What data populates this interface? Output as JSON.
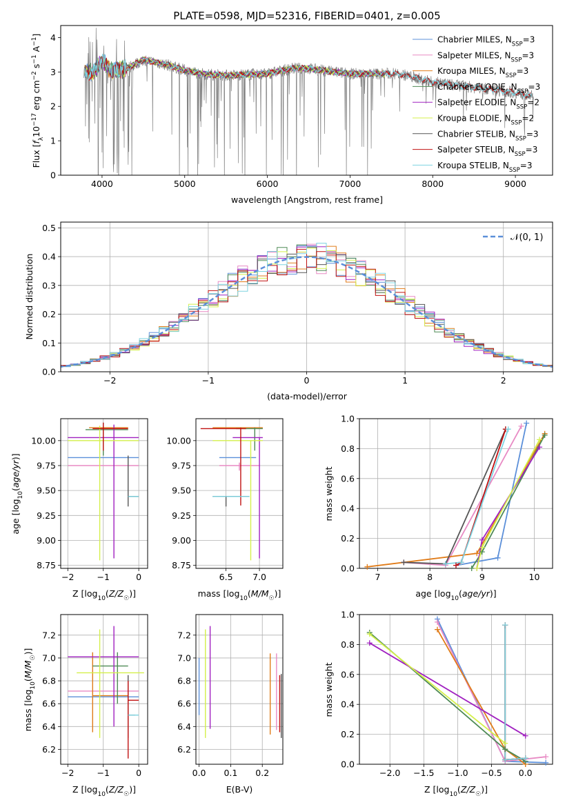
{
  "figure": {
    "title": "PLATE=0598, MJD=52316, FIBERID=0401, z=0.005"
  },
  "colors": {
    "Chabrier MILES": "#5b8fd9",
    "Salpeter MILES": "#e88ac4",
    "Kroupa MILES": "#e07b18",
    "Chabrier ELODIE": "#4e8a55",
    "Salpeter ELODIE": "#a020c0",
    "Kroupa ELODIE": "#d4f04a",
    "Chabrier STELIB": "#555555",
    "Salpeter STELIB": "#c01010",
    "Kroupa STELIB": "#7dd3e0",
    "data": "#808080",
    "gaussian": "#5b8fd9"
  },
  "chart_data": [
    {
      "id": "spectrum",
      "type": "line",
      "title": "PLATE=0598, MJD=52316, FIBERID=0401, z=0.005",
      "xlabel": "wavelength [Angstrom, rest frame]",
      "ylabel_parts": [
        "Flux [",
        "f",
        "λ",
        "10",
        "−17",
        " erg cm",
        "−2",
        " s",
        "−1",
        " A",
        "−1",
        "]"
      ],
      "xlim": [
        3500,
        9450
      ],
      "ylim": [
        0,
        4.35
      ],
      "xticks": [
        4000,
        5000,
        6000,
        7000,
        8000,
        9000
      ],
      "yticks": [
        0,
        1,
        2,
        3,
        4
      ],
      "legend_position": "top-right",
      "series": [
        {
          "name": "Chabrier MILES",
          "nssp": "3"
        },
        {
          "name": "Salpeter MILES",
          "nssp": "3"
        },
        {
          "name": "Kroupa MILES",
          "nssp": "3"
        },
        {
          "name": "Chabrier ELODIE",
          "nssp": "3"
        },
        {
          "name": "Salpeter ELODIE",
          "nssp": "2"
        },
        {
          "name": "Kroupa ELODIE",
          "nssp": "2"
        },
        {
          "name": "Chabrier STELIB",
          "nssp": "3"
        },
        {
          "name": "Salpeter STELIB",
          "nssp": "3"
        },
        {
          "name": "Kroupa STELIB",
          "nssp": "3"
        }
      ],
      "continuum": {
        "x": [
          3780,
          3900,
          4000,
          4100,
          4300,
          4500,
          4800,
          5000,
          5200,
          5500,
          6000,
          6300,
          6500,
          6800,
          7000,
          7400,
          7600,
          8000,
          8500,
          9000,
          9200
        ],
        "y": [
          3.0,
          3.0,
          3.35,
          3.05,
          3.1,
          3.35,
          3.2,
          3.05,
          2.95,
          2.9,
          2.95,
          3.1,
          3.1,
          3.0,
          2.95,
          2.95,
          2.95,
          2.7,
          2.55,
          2.4,
          2.3
        ]
      }
    },
    {
      "id": "residuals",
      "type": "line",
      "xlabel": "(data-model)/error",
      "ylabel": "Normed distribution",
      "xlim": [
        -2.5,
        2.5
      ],
      "ylim": [
        0,
        0.52
      ],
      "xticks": [
        -2,
        -1,
        0,
        1,
        2
      ],
      "yticks": [
        0.0,
        0.1,
        0.2,
        0.3,
        0.4,
        0.5
      ],
      "grid": true,
      "legend_position": "top-right",
      "legend_label": "𝒩(0, 1)",
      "gaussian": {
        "mu": 0,
        "sigma": 1
      }
    },
    {
      "id": "age-vs-Z",
      "type": "scatter",
      "xlabel_parts": [
        "Z [log",
        "10",
        "(",
        "Z/Z",
        "☉",
        ")]"
      ],
      "ylabel_parts": [
        "age  [log",
        "10",
        "(",
        "age/yr",
        ")]"
      ],
      "xlim": [
        -2.2,
        0.25
      ],
      "ylim": [
        8.72,
        10.22
      ],
      "xticks": [
        -2,
        -1,
        0
      ],
      "yticks": [
        8.75,
        9.0,
        9.25,
        9.5,
        9.75,
        10.0
      ],
      "grid": true,
      "points": [
        {
          "s": "Chabrier MILES",
          "x": -2.0,
          "y": 9.83,
          "xe": [
            -2.0,
            0.0
          ],
          "ye": [
            9.83,
            9.83
          ]
        },
        {
          "s": "Salpeter MILES",
          "x": -2.0,
          "y": 9.75,
          "xe": [
            -2.0,
            0.0
          ],
          "ye": [
            9.75,
            9.75
          ]
        },
        {
          "s": "Kroupa MILES",
          "x": -1.4,
          "y": 10.13,
          "xe": [
            -1.4,
            -0.3
          ],
          "ye": [
            10.13,
            10.13
          ]
        },
        {
          "s": "Chabrier ELODIE",
          "x": -1.0,
          "y": 10.11,
          "xe": [
            -1.5,
            -0.3
          ],
          "ye": [
            9.85,
            10.18
          ]
        },
        {
          "s": "Salpeter ELODIE",
          "x": -0.7,
          "y": 10.03,
          "xe": [
            -2.0,
            0.0
          ],
          "ye": [
            8.82,
            10.16
          ]
        },
        {
          "s": "Kroupa ELODIE",
          "x": -1.1,
          "y": 10.0,
          "xe": [
            -2.0,
            0.0
          ],
          "ye": [
            8.8,
            10.15
          ]
        },
        {
          "s": "Chabrier STELIB",
          "x": -0.3,
          "y": 9.44,
          "xe": [
            -0.3,
            0.0
          ],
          "ye": [
            9.34,
            9.85
          ]
        },
        {
          "s": "Salpeter STELIB",
          "x": -1.0,
          "y": 10.12,
          "xe": [
            -1.3,
            -0.3
          ],
          "ye": [
            9.9,
            10.18
          ]
        },
        {
          "s": "Kroupa STELIB",
          "x": -0.1,
          "y": 9.44,
          "xe": [
            -0.3,
            0.0
          ],
          "ye": [
            9.44,
            9.44
          ]
        }
      ]
    },
    {
      "id": "age-vs-mass",
      "type": "scatter",
      "xlabel_parts": [
        "mass [log",
        "10",
        "(",
        "M/M",
        "☉",
        ")]"
      ],
      "xlim": [
        6.05,
        7.35
      ],
      "ylim": [
        8.72,
        10.22
      ],
      "xticks": [
        6.5,
        7.0
      ],
      "yticks": [
        8.75,
        9.0,
        9.25,
        9.5,
        9.75,
        10.0
      ],
      "grid": true,
      "points": [
        {
          "s": "Chabrier MILES",
          "x": 6.66,
          "y": 9.83,
          "xe": [
            6.4,
            6.95
          ],
          "ye": [
            9.83,
            9.83
          ]
        },
        {
          "s": "Salpeter MILES",
          "x": 6.7,
          "y": 9.75,
          "xe": [
            6.4,
            7.0
          ],
          "ye": [
            9.7,
            9.78
          ]
        },
        {
          "s": "Kroupa MILES",
          "x": 6.65,
          "y": 10.13,
          "xe": [
            6.3,
            7.05
          ],
          "ye": [
            10.13,
            10.13
          ]
        },
        {
          "s": "Chabrier ELODIE",
          "x": 6.93,
          "y": 10.12,
          "xe": [
            6.65,
            7.05
          ],
          "ye": [
            9.9,
            10.13
          ]
        },
        {
          "s": "Salpeter ELODIE",
          "x": 7.0,
          "y": 10.03,
          "xe": [
            6.6,
            7.05
          ],
          "ye": [
            8.82,
            10.03
          ]
        },
        {
          "s": "Kroupa ELODIE",
          "x": 6.87,
          "y": 10.0,
          "xe": [
            6.3,
            7.05
          ],
          "ye": [
            8.8,
            10.0
          ]
        },
        {
          "s": "Chabrier STELIB",
          "x": 6.5,
          "y": 9.44,
          "xe": [
            6.3,
            6.85
          ],
          "ye": [
            9.34,
            9.44
          ]
        },
        {
          "s": "Salpeter STELIB",
          "x": 6.72,
          "y": 10.12,
          "xe": [
            6.12,
            6.8
          ],
          "ye": [
            9.35,
            10.13
          ]
        },
        {
          "s": "Kroupa STELIB",
          "x": 6.5,
          "y": 9.44,
          "xe": [
            6.3,
            6.85
          ],
          "ye": [
            9.44,
            9.44
          ]
        }
      ]
    },
    {
      "id": "massweight-vs-age",
      "type": "line",
      "xlabel_parts": [
        "age  [log",
        "10",
        "(",
        "age/yr",
        ")]"
      ],
      "ylabel": "mass weight",
      "xlim": [
        6.65,
        10.35
      ],
      "ylim": [
        0,
        1.0
      ],
      "xticks": [
        7,
        8,
        9,
        10
      ],
      "yticks": [
        0.0,
        0.2,
        0.4,
        0.6,
        0.8,
        1.0
      ],
      "grid": true,
      "series": [
        {
          "name": "Chabrier MILES",
          "x": [
            8.5,
            9.3,
            9.85
          ],
          "y": [
            0.02,
            0.07,
            0.97
          ]
        },
        {
          "name": "Salpeter MILES",
          "x": [
            7.5,
            8.3,
            9.75
          ],
          "y": [
            0.04,
            0.02,
            0.95
          ]
        },
        {
          "name": "Kroupa MILES",
          "x": [
            6.8,
            8.9,
            10.2
          ],
          "y": [
            0.01,
            0.1,
            0.9
          ]
        },
        {
          "name": "Chabrier ELODIE",
          "x": [
            8.8,
            9.0,
            10.2
          ],
          "y": [
            0.0,
            0.11,
            0.89
          ]
        },
        {
          "name": "Salpeter ELODIE",
          "x": [
            8.9,
            9.0,
            10.1
          ],
          "y": [
            0.0,
            0.19,
            0.81
          ]
        },
        {
          "name": "Kroupa ELODIE",
          "x": [
            8.9,
            9.0,
            10.1
          ],
          "y": [
            0.0,
            0.14,
            0.86
          ]
        },
        {
          "name": "Chabrier STELIB",
          "x": [
            7.5,
            8.3,
            9.45
          ],
          "y": [
            0.04,
            0.03,
            0.93
          ]
        },
        {
          "name": "Salpeter STELIB",
          "x": [
            8.5,
            8.6,
            9.45
          ],
          "y": [
            0.02,
            0.04,
            0.93
          ]
        },
        {
          "name": "Kroupa STELIB",
          "x": [
            8.3,
            8.6,
            9.5
          ],
          "y": [
            0.03,
            0.04,
            0.93
          ]
        }
      ]
    },
    {
      "id": "mass-vs-Z",
      "type": "scatter",
      "xlabel_parts": [
        "Z [log",
        "10",
        "(",
        "Z/Z",
        "☉",
        ")]"
      ],
      "ylabel_parts": [
        "mass [log",
        "10",
        "(",
        "M/M",
        "☉",
        ")]"
      ],
      "xlim": [
        -2.2,
        0.25
      ],
      "ylim": [
        6.07,
        7.38
      ],
      "xticks": [
        -2,
        -1,
        0
      ],
      "yticks": [
        6.2,
        6.4,
        6.6,
        6.8,
        7.0,
        7.2
      ],
      "grid": true,
      "points": [
        {
          "s": "Chabrier MILES",
          "x": -2.0,
          "y": 6.66,
          "xe": [
            -2.0,
            0.0
          ],
          "ye": [
            6.66,
            6.66
          ]
        },
        {
          "s": "Salpeter MILES",
          "x": -2.0,
          "y": 6.71,
          "xe": [
            -2.0,
            0.0
          ],
          "ye": [
            6.71,
            6.71
          ]
        },
        {
          "s": "Kroupa MILES",
          "x": -1.3,
          "y": 6.67,
          "xe": [
            -1.3,
            -0.3
          ],
          "ye": [
            6.35,
            7.05
          ]
        },
        {
          "s": "Chabrier ELODIE",
          "x": -0.6,
          "y": 6.93,
          "xe": [
            -1.3,
            -0.3
          ],
          "ye": [
            6.6,
            7.05
          ]
        },
        {
          "s": "Salpeter ELODIE",
          "x": -0.7,
          "y": 7.01,
          "xe": [
            -2.0,
            0.0
          ],
          "ye": [
            6.4,
            7.28
          ]
        },
        {
          "s": "Kroupa ELODIE",
          "x": -1.1,
          "y": 6.87,
          "xe": [
            -1.75,
            0.15
          ],
          "ye": [
            6.3,
            7.25
          ]
        },
        {
          "s": "Chabrier STELIB",
          "x": -0.3,
          "y": 6.5,
          "xe": [
            -0.3,
            -0.1
          ],
          "ye": [
            6.3,
            6.85
          ]
        },
        {
          "s": "Salpeter STELIB",
          "x": -0.3,
          "y": 6.63,
          "xe": [
            -0.3,
            0.0
          ],
          "ye": [
            6.12,
            6.8
          ]
        },
        {
          "s": "Kroupa STELIB",
          "x": -0.1,
          "y": 6.5,
          "xe": [
            -0.3,
            0.0
          ],
          "ye": [
            6.5,
            6.5
          ]
        }
      ]
    },
    {
      "id": "mass-vs-ebv",
      "type": "scatter",
      "xlabel": "E(B-V)",
      "xlim": [
        -0.01,
        0.265
      ],
      "ylim": [
        6.07,
        7.38
      ],
      "xticks": [
        0.0,
        0.1,
        0.2
      ],
      "yticks": [
        6.2,
        6.4,
        6.6,
        6.8,
        7.0,
        7.2
      ],
      "grid": true,
      "points": [
        {
          "s": "Chabrier MILES",
          "x": 0.0,
          "y": 6.7,
          "xe": [
            0.0,
            0.0
          ],
          "ye": [
            6.5,
            7.0
          ]
        },
        {
          "s": "Kroupa ELODIE",
          "x": 0.02,
          "y": 6.8,
          "xe": [
            0.02,
            0.02
          ],
          "ye": [
            6.3,
            7.25
          ]
        },
        {
          "s": "Salpeter ELODIE",
          "x": 0.035,
          "y": 6.8,
          "xe": [
            0.035,
            0.035
          ],
          "ye": [
            6.38,
            7.28
          ]
        },
        {
          "s": "Kroupa MILES",
          "x": 0.225,
          "y": 6.7,
          "xe": [
            0.225,
            0.225
          ],
          "ye": [
            6.33,
            7.04
          ]
        },
        {
          "s": "Salpeter MILES",
          "x": 0.245,
          "y": 6.7,
          "xe": [
            0.245,
            0.245
          ],
          "ye": [
            6.37,
            7.04
          ]
        },
        {
          "s": "Salpeter STELIB",
          "x": 0.255,
          "y": 6.6,
          "xe": [
            0.255,
            0.255
          ],
          "ye": [
            6.35,
            6.85
          ]
        },
        {
          "s": "Chabrier STELIB",
          "x": 0.26,
          "y": 6.6,
          "xe": [
            0.26,
            0.26
          ],
          "ye": [
            6.3,
            6.86
          ]
        }
      ]
    },
    {
      "id": "massweight-vs-Z",
      "type": "line",
      "xlabel_parts": [
        "Z [log",
        "10",
        "(",
        "Z/Z",
        "☉",
        ")]"
      ],
      "ylabel": "mass weight",
      "xlim": [
        -2.45,
        0.4
      ],
      "ylim": [
        0,
        1.0
      ],
      "xticks": [
        -2.0,
        -1.5,
        -1.0,
        -0.5,
        0.0
      ],
      "yticks": [
        0.0,
        0.2,
        0.4,
        0.6,
        0.8,
        1.0
      ],
      "grid": true,
      "series": [
        {
          "name": "Chabrier MILES",
          "x": [
            -1.3,
            -0.3,
            0.3
          ],
          "y": [
            0.97,
            0.02,
            0.01
          ]
        },
        {
          "name": "Salpeter MILES",
          "x": [
            -1.3,
            -0.3,
            0.3
          ],
          "y": [
            0.95,
            0.02,
            0.05
          ]
        },
        {
          "name": "Kroupa MILES",
          "x": [
            -1.3,
            -0.3,
            0.0
          ],
          "y": [
            0.9,
            0.1,
            0.0
          ]
        },
        {
          "name": "Chabrier ELODIE",
          "x": [
            -2.3,
            -0.3,
            0.0
          ],
          "y": [
            0.88,
            0.1,
            0.02
          ]
        },
        {
          "name": "Salpeter ELODIE",
          "x": [
            -2.3,
            0.0
          ],
          "y": [
            0.81,
            0.19
          ]
        },
        {
          "name": "Kroupa ELODIE",
          "x": [
            -2.3,
            -0.3
          ],
          "y": [
            0.87,
            0.14
          ]
        },
        {
          "name": "Chabrier STELIB",
          "x": [
            -0.3,
            -0.3,
            0.0
          ],
          "y": [
            0.93,
            0.03,
            0.04
          ]
        },
        {
          "name": "Salpeter STELIB",
          "x": [
            -0.3,
            -0.3,
            0.0
          ],
          "y": [
            0.93,
            0.03,
            0.04
          ]
        },
        {
          "name": "Kroupa STELIB",
          "x": [
            -0.3,
            -0.3,
            0.0
          ],
          "y": [
            0.93,
            0.03,
            0.04
          ]
        }
      ]
    }
  ]
}
